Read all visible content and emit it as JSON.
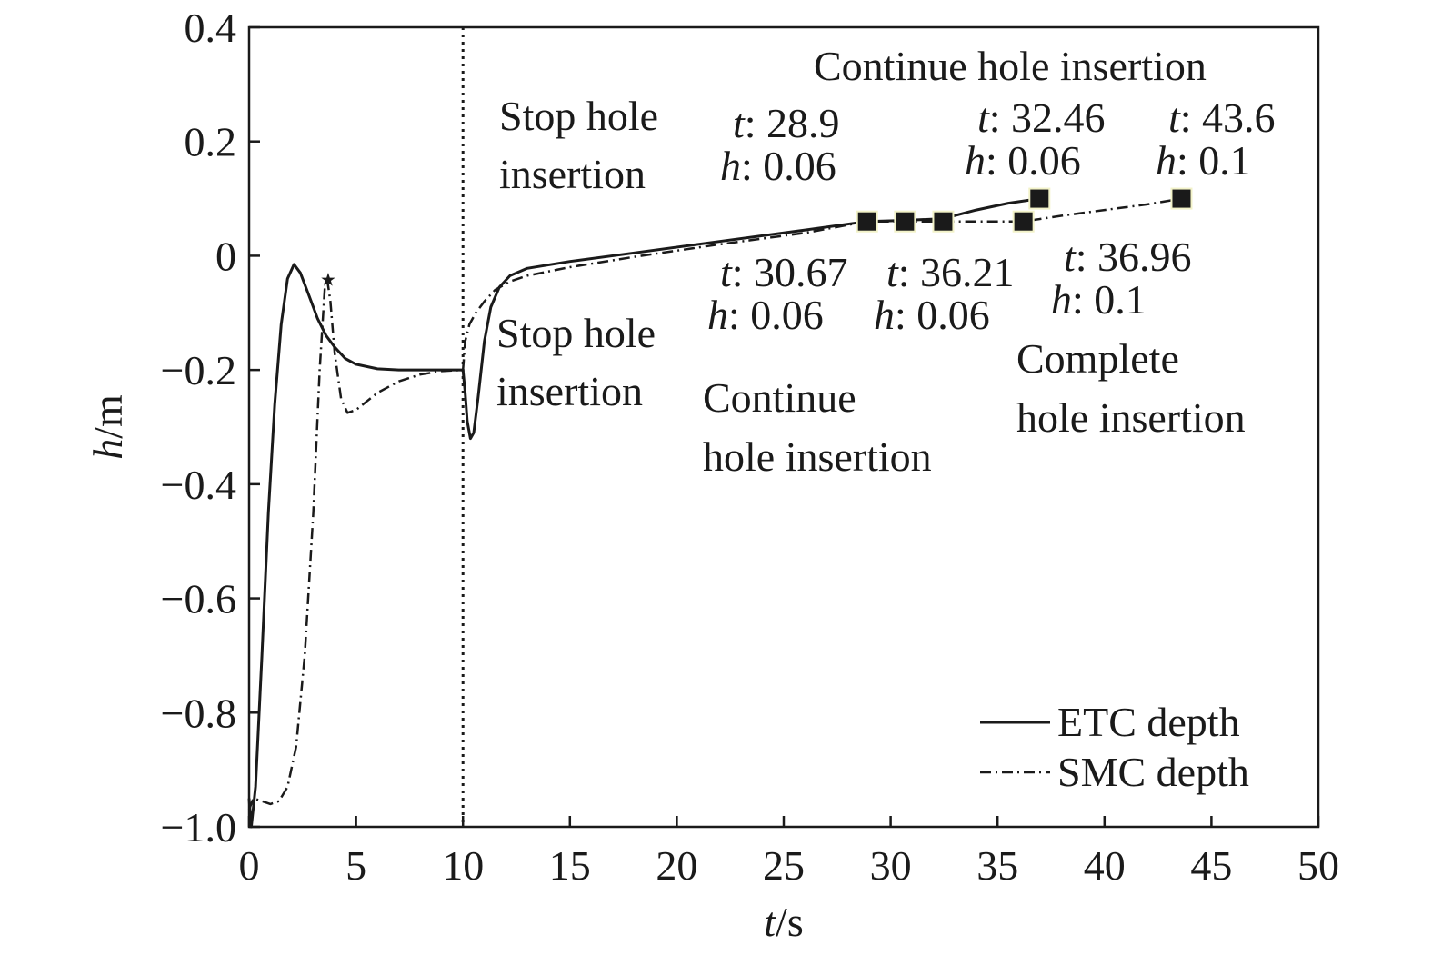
{
  "chart_data": {
    "type": "line",
    "xlabel": {
      "var": "t",
      "unit": "/s"
    },
    "ylabel": {
      "var": "h",
      "unit": "/m"
    },
    "xlim": [
      0,
      50
    ],
    "ylim": [
      -1.0,
      0.4
    ],
    "x_ticks": [
      0,
      5,
      10,
      15,
      20,
      25,
      30,
      35,
      40,
      45,
      50
    ],
    "x_tick_labels": [
      "0",
      "5",
      "10",
      "15",
      "20",
      "25",
      "30",
      "35",
      "40",
      "45",
      "50"
    ],
    "y_ticks": [
      0.4,
      0.2,
      0,
      -0.2,
      -0.4,
      -0.6,
      -0.8,
      -1.0
    ],
    "y_tick_labels": [
      "0.4",
      "0.2",
      "0",
      "−0.2",
      "−0.4",
      "−0.6",
      "−0.8",
      "−1.0"
    ],
    "grid": false,
    "legend_position": "bottom-right",
    "vertical_marker_x": 10,
    "series": [
      {
        "name": "ETC depth",
        "style": "solid",
        "color": "#1a1a1a",
        "points": [
          [
            0,
            -0.95
          ],
          [
            0.1,
            -1.0
          ],
          [
            0.3,
            -0.93
          ],
          [
            0.6,
            -0.7
          ],
          [
            0.9,
            -0.45
          ],
          [
            1.2,
            -0.26
          ],
          [
            1.5,
            -0.12
          ],
          [
            1.8,
            -0.04
          ],
          [
            2.1,
            -0.015
          ],
          [
            2.4,
            -0.03
          ],
          [
            2.8,
            -0.07
          ],
          [
            3.2,
            -0.11
          ],
          [
            3.6,
            -0.14
          ],
          [
            4.0,
            -0.16
          ],
          [
            4.5,
            -0.18
          ],
          [
            5.0,
            -0.19
          ],
          [
            6.0,
            -0.198
          ],
          [
            7.0,
            -0.2
          ],
          [
            8.0,
            -0.2
          ],
          [
            9.0,
            -0.2
          ],
          [
            10.0,
            -0.2
          ],
          [
            10.1,
            -0.24
          ],
          [
            10.2,
            -0.29
          ],
          [
            10.35,
            -0.32
          ],
          [
            10.5,
            -0.31
          ],
          [
            10.7,
            -0.25
          ],
          [
            11.0,
            -0.15
          ],
          [
            11.3,
            -0.09
          ],
          [
            11.7,
            -0.055
          ],
          [
            12.2,
            -0.035
          ],
          [
            13.0,
            -0.022
          ],
          [
            15.0,
            -0.01
          ],
          [
            18.0,
            0.005
          ],
          [
            22.0,
            0.025
          ],
          [
            26.0,
            0.045
          ],
          [
            28.9,
            0.06
          ],
          [
            30.67,
            0.062
          ],
          [
            32.46,
            0.065
          ],
          [
            34.0,
            0.08
          ],
          [
            35.5,
            0.092
          ],
          [
            36.96,
            0.1
          ]
        ]
      },
      {
        "name": "SMC depth",
        "style": "dash-dot",
        "color": "#1a1a1a",
        "points": [
          [
            0,
            -0.97
          ],
          [
            0.2,
            -0.95
          ],
          [
            0.6,
            -0.955
          ],
          [
            1.0,
            -0.96
          ],
          [
            1.4,
            -0.955
          ],
          [
            1.8,
            -0.93
          ],
          [
            2.2,
            -0.86
          ],
          [
            2.6,
            -0.7
          ],
          [
            3.0,
            -0.45
          ],
          [
            3.3,
            -0.2
          ],
          [
            3.55,
            -0.05
          ],
          [
            3.65,
            -0.04
          ],
          [
            3.8,
            -0.08
          ],
          [
            4.0,
            -0.17
          ],
          [
            4.3,
            -0.25
          ],
          [
            4.6,
            -0.275
          ],
          [
            5.0,
            -0.27
          ],
          [
            5.5,
            -0.255
          ],
          [
            6.0,
            -0.24
          ],
          [
            7.0,
            -0.22
          ],
          [
            8.0,
            -0.208
          ],
          [
            9.0,
            -0.202
          ],
          [
            10.0,
            -0.2
          ],
          [
            10.1,
            -0.15
          ],
          [
            10.3,
            -0.12
          ],
          [
            10.6,
            -0.1
          ],
          [
            11.0,
            -0.08
          ],
          [
            11.5,
            -0.06
          ],
          [
            12.2,
            -0.045
          ],
          [
            13.0,
            -0.035
          ],
          [
            15.0,
            -0.02
          ],
          [
            18.0,
            -0.002
          ],
          [
            22.0,
            0.02
          ],
          [
            26.0,
            0.04
          ],
          [
            28.9,
            0.06
          ],
          [
            30.67,
            0.06
          ],
          [
            32.46,
            0.06
          ],
          [
            34.0,
            0.06
          ],
          [
            36.21,
            0.06
          ],
          [
            38.0,
            0.07
          ],
          [
            40.0,
            0.08
          ],
          [
            42.0,
            0.09
          ],
          [
            43.6,
            0.1
          ]
        ]
      }
    ],
    "markers": [
      {
        "t": 28.9,
        "h": 0.06
      },
      {
        "t": 30.67,
        "h": 0.06
      },
      {
        "t": 32.46,
        "h": 0.06
      },
      {
        "t": 36.21,
        "h": 0.06
      },
      {
        "t": 36.96,
        "h": 0.1
      },
      {
        "t": 43.6,
        "h": 0.1
      }
    ],
    "star_marker": {
      "t": 3.7,
      "h": -0.04
    },
    "annotations": {
      "stop_upper": [
        "Stop hole",
        "insertion"
      ],
      "stop_lower": [
        "Stop hole",
        "insertion"
      ],
      "continue_top": [
        "Continue hole insertion"
      ],
      "continue_lower": [
        "Continue",
        "hole insertion"
      ],
      "complete": [
        "Complete",
        "hole insertion"
      ],
      "point_labels": [
        {
          "t": "28.9",
          "h": "0.06"
        },
        {
          "t": "32.46",
          "h": "0.06"
        },
        {
          "t": "43.6",
          "h": "0.1"
        },
        {
          "t": "30.67",
          "h": "0.06"
        },
        {
          "t": "36.21",
          "h": "0.06"
        },
        {
          "t": "36.96",
          "h": "0.1"
        }
      ]
    }
  }
}
